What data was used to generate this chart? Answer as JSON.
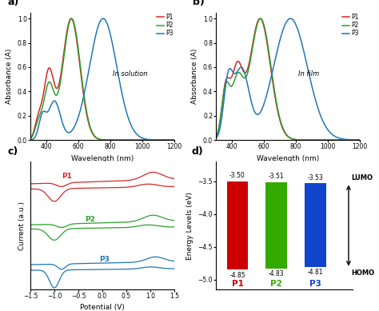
{
  "panel_a": {
    "title": "In solution",
    "xlabel": "Wavelength (nm)",
    "ylabel": "Absorbance (A)",
    "xlim": [
      300,
      1200
    ],
    "ylim": [
      0.0,
      1.05
    ],
    "yticks": [
      0.0,
      0.2,
      0.4,
      0.6,
      0.8,
      1.0
    ],
    "xticks": [
      400,
      600,
      800,
      1000,
      1200
    ],
    "colors": {
      "P1": "#d62728",
      "P2": "#2ca02c",
      "P3": "#1f77b4"
    }
  },
  "panel_b": {
    "title": "In film",
    "xlabel": "Wavelength (nm)",
    "ylabel": "Absorbance (A)",
    "xlim": [
      300,
      1200
    ],
    "ylim": [
      0.0,
      1.05
    ],
    "yticks": [
      0.0,
      0.2,
      0.4,
      0.6,
      0.8,
      1.0
    ],
    "xticks": [
      400,
      600,
      800,
      1000,
      1200
    ],
    "colors": {
      "P1": "#d62728",
      "P2": "#2ca02c",
      "P3": "#1f77b4"
    }
  },
  "panel_c": {
    "xlabel": "Potential (V)",
    "ylabel": "Current (a.u.)",
    "xlim": [
      -1.5,
      1.5
    ],
    "xticks": [
      -1.5,
      -1.0,
      -0.5,
      0.0,
      0.5,
      1.0,
      1.5
    ],
    "colors": {
      "P1": "#d62728",
      "P2": "#2ca02c",
      "P3": "#1f77b4"
    }
  },
  "panel_d": {
    "categories": [
      "P1",
      "P2",
      "P3"
    ],
    "lumo": [
      -3.5,
      -3.51,
      -3.53
    ],
    "homo": [
      -4.85,
      -4.83,
      -4.81
    ],
    "colors": [
      "#cc0000",
      "#33aa00",
      "#1144cc"
    ],
    "ylabel": "Energy Levels (eV)",
    "ylim": [
      -5.15,
      -3.2
    ],
    "yticks": [
      -3.5,
      -4.0,
      -4.5,
      -5.0
    ]
  }
}
